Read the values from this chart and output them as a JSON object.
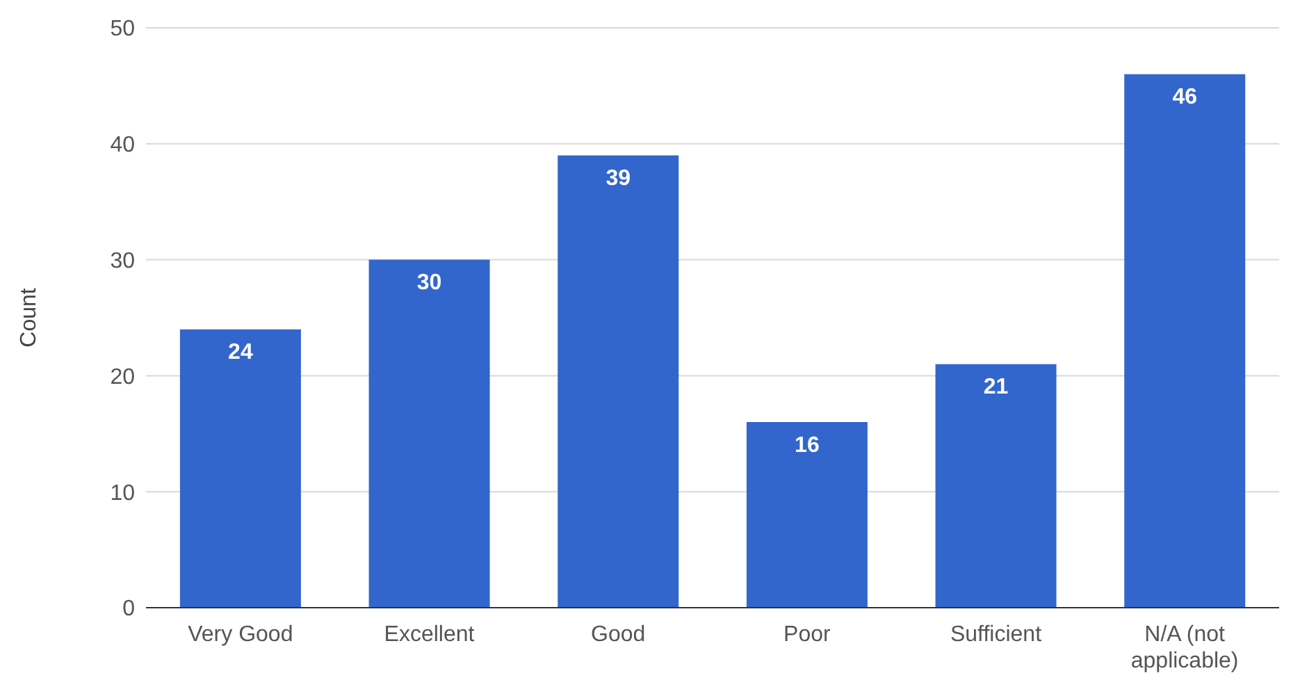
{
  "chart_data": {
    "type": "bar",
    "ylabel": "Count",
    "categories": [
      "Very Good",
      "Excellent",
      "Good",
      "Poor",
      "Sufficient",
      "N/A (not applicable)"
    ],
    "values": [
      24,
      30,
      39,
      16,
      21,
      46
    ],
    "color": "#3366cc",
    "ylim": [
      0,
      50
    ],
    "yticks": [
      0,
      10,
      20,
      30,
      40,
      50
    ],
    "grid": "y",
    "data_labels": true
  }
}
